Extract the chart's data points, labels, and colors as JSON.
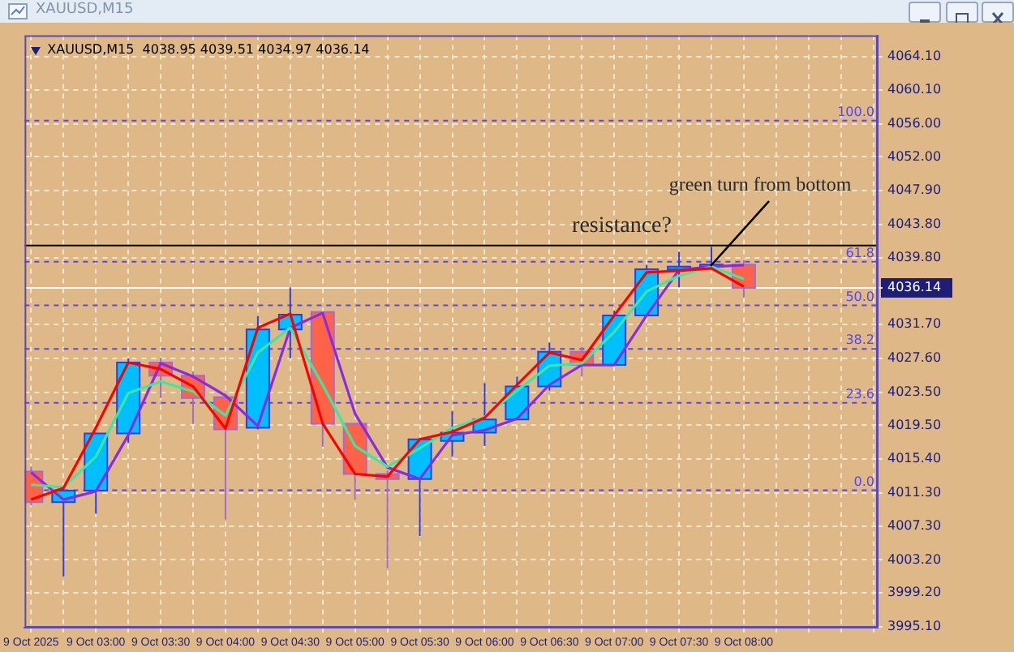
{
  "chart_data": {
    "type": "candlestick",
    "title": "XAUUSD,M15",
    "subtitle": "XAUUSD,M15  4038.95 4039.51 4034.97 4036.14",
    "x": [
      "2025-10-09T02:30",
      "2025-10-09T02:45",
      "2025-10-09T03:00",
      "2025-10-09T03:15",
      "2025-10-09T03:30",
      "2025-10-09T03:45",
      "2025-10-09T04:00",
      "2025-10-09T04:15",
      "2025-10-09T04:30",
      "2025-10-09T04:45",
      "2025-10-09T05:00",
      "2025-10-09T05:15",
      "2025-10-09T05:30",
      "2025-10-09T05:45",
      "2025-10-09T06:00",
      "2025-10-09T06:15",
      "2025-10-09T06:30",
      "2025-10-09T06:45",
      "2025-10-09T07:00",
      "2025-10-09T07:15",
      "2025-10-09T07:30",
      "2025-10-09T07:45",
      "2025-10-09T08:00"
    ],
    "ohlc": [
      [
        4013.9,
        4014.5,
        4009.8,
        4010.2
      ],
      [
        4010.2,
        4012.0,
        4001.2,
        4011.6
      ],
      [
        4011.6,
        4018.6,
        4008.8,
        4018.5
      ],
      [
        4018.5,
        4027.6,
        4017.4,
        4027.1
      ],
      [
        4027.1,
        4027.7,
        4022.8,
        4025.5
      ],
      [
        4025.5,
        4026.0,
        4019.7,
        4022.8
      ],
      [
        4022.9,
        4023.1,
        4008.1,
        4019.0
      ],
      [
        4019.2,
        4032.7,
        4019.0,
        4031.1
      ],
      [
        4031.1,
        4036.2,
        4027.6,
        4032.9
      ],
      [
        4033.2,
        4033.2,
        4016.9,
        4019.7
      ],
      [
        4019.7,
        4019.7,
        4010.5,
        4013.6
      ],
      [
        4013.6,
        4014.0,
        4002.2,
        4013.0
      ],
      [
        4013.0,
        4018.0,
        4006.1,
        4017.8
      ],
      [
        4017.6,
        4021.2,
        4015.7,
        4018.6
      ],
      [
        4018.6,
        4024.6,
        4017.0,
        4020.2
      ],
      [
        4020.2,
        4025.4,
        4020.2,
        4024.2
      ],
      [
        4024.2,
        4029.5,
        4023.7,
        4028.4
      ],
      [
        4028.4,
        4029.0,
        4025.4,
        4026.8
      ],
      [
        4026.8,
        4033.4,
        4026.8,
        4032.8
      ],
      [
        4032.8,
        4038.9,
        4032.8,
        4038.4
      ],
      [
        4038.4,
        4040.5,
        4036.2,
        4038.7
      ],
      [
        4038.7,
        4041.1,
        4038.6,
        4038.95
      ],
      [
        4038.95,
        4039.51,
        4034.97,
        4036.14
      ]
    ],
    "colors": [
      "#ff6347",
      "#00bfff",
      "#00bfff",
      "#00bfff",
      "#ff6347",
      "#ff6347",
      "#ff6347",
      "#00bfff",
      "#00bfff",
      "#ff6347",
      "#ff6347",
      "#ff6347",
      "#00bfff",
      "#00bfff",
      "#00bfff",
      "#00bfff",
      "#00bfff",
      "#ff6347",
      "#00bfff",
      "#00bfff",
      "#00bfff",
      "#00bfff",
      "#ff6347"
    ],
    "series": [
      {
        "type": "line",
        "color": "#ff0000",
        "values": [
          4010.5,
          4011.9,
          4019.2,
          4027.1,
          4026.3,
          4024.2,
          4019.1,
          4031.3,
          4033.0,
          4019.7,
          4013.6,
          4013.3,
          4017.8,
          4018.7,
          4020.4,
          4024.4,
          4028.3,
          4027.4,
          4032.8,
          4038.0,
          4038.2,
          4038.5,
          4036.3
        ]
      },
      {
        "type": "line",
        "color": "#3ce8a0",
        "values": [
          4012.3,
          4012.0,
          4015.7,
          4023.4,
          4024.8,
          4023.6,
          4020.7,
          4028.3,
          4031.3,
          4024.4,
          4017.0,
          4014.5,
          4016.7,
          4019.2,
          4020.5,
          4023.7,
          4026.7,
          4027.0,
          4030.8,
          4035.7,
          4037.6,
          4038.7,
          4037.2
        ]
      },
      {
        "type": "line",
        "color": "#8a2be2",
        "values": [
          4013.8,
          4010.5,
          4011.5,
          4018.3,
          4027.0,
          4025.4,
          4023.1,
          4019.4,
          4031.3,
          4033.1,
          4020.9,
          4014.4,
          4013.0,
          4018.3,
          4018.9,
          4020.3,
          4024.4,
          4026.8,
          4026.8,
          4032.8,
          4038.3,
          4038.7,
          4038.9
        ]
      }
    ],
    "xlim": [
      "2025-10-09T02:27",
      "2025-10-09T09:02"
    ],
    "xticks": [
      {
        "value": "2025-10-09T02:30",
        "label": "9 Oct 2025"
      },
      {
        "value": "2025-10-09T02:45",
        "label": null
      },
      {
        "value": "2025-10-09T03:00",
        "label": "9 Oct 03:00"
      },
      {
        "value": "2025-10-09T03:15",
        "label": null
      },
      {
        "value": "2025-10-09T03:30",
        "label": "9 Oct 03:30"
      },
      {
        "value": "2025-10-09T03:45",
        "label": null
      },
      {
        "value": "2025-10-09T04:00",
        "label": "9 Oct 04:00"
      },
      {
        "value": "2025-10-09T04:15",
        "label": null
      },
      {
        "value": "2025-10-09T04:30",
        "label": "9 Oct 04:30"
      },
      {
        "value": "2025-10-09T04:45",
        "label": null
      },
      {
        "value": "2025-10-09T05:00",
        "label": "9 Oct 05:00"
      },
      {
        "value": "2025-10-09T05:15",
        "label": null
      },
      {
        "value": "2025-10-09T05:30",
        "label": "9 Oct 05:30"
      },
      {
        "value": "2025-10-09T05:45",
        "label": null
      },
      {
        "value": "2025-10-09T06:00",
        "label": "9 Oct 06:00"
      },
      {
        "value": "2025-10-09T06:15",
        "label": null
      },
      {
        "value": "2025-10-09T06:30",
        "label": "9 Oct 06:30"
      },
      {
        "value": "2025-10-09T06:45",
        "label": null
      },
      {
        "value": "2025-10-09T07:00",
        "label": "9 Oct 07:00"
      },
      {
        "value": "2025-10-09T07:15",
        "label": null
      },
      {
        "value": "2025-10-09T07:30",
        "label": "9 Oct 07:30"
      },
      {
        "value": "2025-10-09T07:45",
        "label": null
      },
      {
        "value": "2025-10-09T08:00",
        "label": "9 Oct 08:00"
      },
      {
        "value": "2025-10-09T08:15",
        "label": null
      },
      {
        "value": "2025-10-09T08:30",
        "label": null
      },
      {
        "value": "2025-10-09T08:45",
        "label": null
      },
      {
        "value": "2025-10-09T09:00",
        "label": null
      }
    ],
    "ylim": [
      3995.0,
      4066.7
    ],
    "yticks": [
      {
        "value": 4064.1,
        "label": "4064.10"
      },
      {
        "value": 4060.1,
        "label": "4060.10"
      },
      {
        "value": 4056.0,
        "label": "4056.00"
      },
      {
        "value": 4052.0,
        "label": "4052.00"
      },
      {
        "value": 4047.9,
        "label": "4047.90"
      },
      {
        "value": 4043.8,
        "label": "4043.80"
      },
      {
        "value": 4039.8,
        "label": "4039.80"
      },
      {
        "value": 4036.14,
        "label": "4036.14"
      },
      {
        "value": 4031.7,
        "label": "4031.70"
      },
      {
        "value": 4027.6,
        "label": "4027.60"
      },
      {
        "value": 4023.5,
        "label": "4023.50"
      },
      {
        "value": 4019.5,
        "label": "4019.50"
      },
      {
        "value": 4015.4,
        "label": "4015.40"
      },
      {
        "value": 4011.3,
        "label": "4011.30"
      },
      {
        "value": 4007.3,
        "label": "4007.30"
      },
      {
        "value": 4003.2,
        "label": "4003.20"
      },
      {
        "value": 3999.2,
        "label": "3999.20"
      },
      {
        "value": 3995.1,
        "label": "3995.10"
      }
    ],
    "y2lim": [
      -37.22,
      123.07
    ],
    "grid": true,
    "ref_lines": [
      {
        "axis": "y2",
        "value": 100.0,
        "label": "100.0",
        "color": "#5a46e6",
        "line_style": "dashed"
      },
      {
        "axis": "y2",
        "value": 61.8,
        "label": "61.8",
        "color": "#5a46e6",
        "line_style": "dashed"
      },
      {
        "axis": "y2",
        "value": 50.0,
        "label": "50.0",
        "color": "#5a46e6",
        "line_style": "dashed"
      },
      {
        "axis": "y2",
        "value": 38.2,
        "label": "38.2",
        "color": "#5a46e6",
        "line_style": "dashed"
      },
      {
        "axis": "y2",
        "value": 23.6,
        "label": "23.6",
        "color": "#5a46e6",
        "line_style": "dashed"
      },
      {
        "axis": "y2",
        "value": 0.0,
        "label": "0.0",
        "color": "#5a46e6",
        "line_style": "dashed"
      },
      {
        "axis": "y",
        "value": 4041.25,
        "label": "resistance?",
        "color": "#000000",
        "line_style": "solid"
      },
      {
        "axis": "y",
        "value": 4036.14,
        "color": "#ffffff",
        "line_style": "solid"
      }
    ],
    "annotations": [
      {
        "text": "green turn from bottom",
        "x": "2025-10-09T07:45",
        "y": 4038.7
      }
    ]
  }
}
